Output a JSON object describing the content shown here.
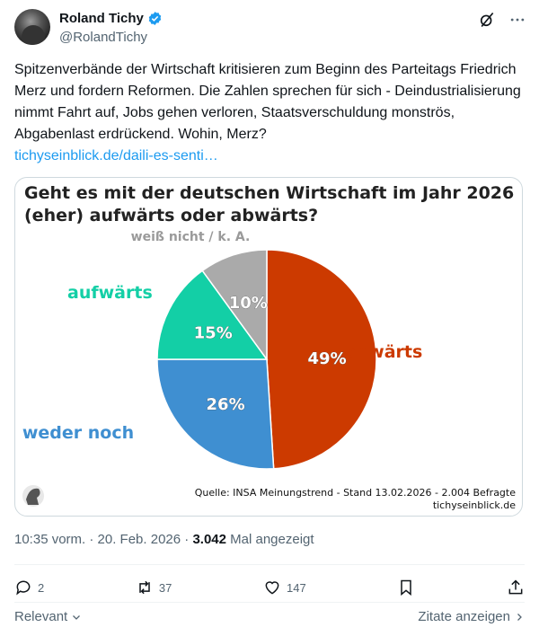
{
  "author": {
    "name": "Roland Tichy",
    "handle": "@RolandTichy"
  },
  "tweet": {
    "text": "Spitzenverbände der Wirtschaft kritisieren zum Beginn des Parteitags Friedrich Merz und fordern Reformen. Die Zahlen sprechen für sich - Deindustrialisierung nimmt Fahrt auf, Jobs gehen verloren, Staatsverschuldung monströs, Abgabenlast erdrückend. Wohin, Merz?",
    "link": "tichyseinblick.de/daili-es-senti…"
  },
  "chart_data": {
    "type": "pie",
    "title": "Geht es mit der deutschen Wirtschaft im Jahr 2026 (eher) aufwärts oder abwärts?",
    "slices": [
      {
        "label": "abwärts",
        "value": 49,
        "value_label": "49%",
        "color": "#cc3a00"
      },
      {
        "label": "weder noch",
        "value": 26,
        "value_label": "26%",
        "color": "#3f8fd1"
      },
      {
        "label": "aufwärts",
        "value": 15,
        "value_label": "15%",
        "color": "#13cfa6"
      },
      {
        "label": "weiß nicht / k. A.",
        "value": 10,
        "value_label": "10%",
        "color": "#aaaaaa"
      }
    ],
    "source": "Quelle: INSA Meinungstrend - Stand 13.02.2026 - 2.004 Befragte",
    "site": "tichyseinblick.de"
  },
  "meta": {
    "time": "10:35 vorm. · 20. Feb. 2026 · ",
    "views": "3.042",
    "views_label": " Mal angezeigt"
  },
  "actions": {
    "replies": "2",
    "reposts": "37",
    "likes": "147"
  },
  "footer": {
    "sort": "Relevant",
    "quotes": "Zitate anzeigen"
  },
  "colors": {
    "accent": "#1d9bf0",
    "muted": "#536471"
  }
}
